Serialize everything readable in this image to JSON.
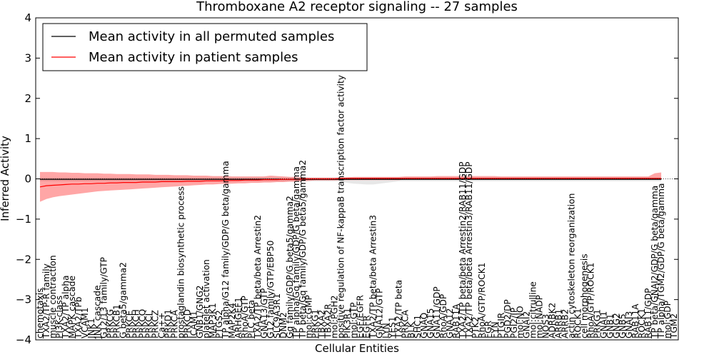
{
  "chart_data": {
    "type": "line",
    "title": "Thromboxane A2 receptor signaling -- 27 samples",
    "xlabel": "Cellular Entities",
    "ylabel": "Inferred Activity",
    "ylim": [
      -4,
      4
    ],
    "yticks": [
      -4,
      -3,
      -2,
      -1,
      0,
      1,
      2,
      3,
      4
    ],
    "grid": false,
    "legend_position": "top-left",
    "categories": [
      "chemotaxis",
      "TXA2/TP-R family",
      "muscle contraction",
      "PI3K-class",
      "TXA2/TP alpha",
      "MAPK cascade",
      "TXA2/TPb",
      "VCAM1",
      "JNK1",
      "JNK cascade",
      "G12/13 family/GTP",
      "PRKCG",
      "PRKCB1",
      "G beta5/gamma2",
      "PRKCE",
      "PRKCH",
      "PRKCQ",
      "PRKCI",
      "PRKCZ",
      "Ca++",
      "PRKD1",
      "PRKCA",
      "prostaglandin biosynthetic process",
      "PRKCD",
      "ICAM1",
      "GNB1/GNG2",
      "platelet activation",
      "MAP3K1",
      "PTGS2",
      "TP alpha/G12 family/GDP/G beta/gamma",
      "MAP2K4",
      "ARHGEF1",
      "RhoA/GTP",
      "PLC beta",
      "TXA2/TP beta/beta Arrestin2",
      "GNA13/GTP",
      "G12 family/GTP/EBP50",
      "SLC9A3R1",
      "DNM2",
      "Gq family/GDP/G beta5/gamma2",
      "TP alpha/Gq family/GDP/G beta/gamma",
      "TP beta/Gq family/GDP/G beta5/gamma2",
      "mol:cGMP",
      "PRKG1",
      "TBXA2",
      "TBXA2R",
      "mol:PGH2",
      "positive regulation of NF-kappaB transcription factor activity",
      "PIK3R1",
      "mol:GTP",
      "EGF/EGFR",
      "EGFR",
      "TXA2/TP beta/beta Arrestin3",
      "GNA12/GTP",
      "LYN",
      "YES1",
      "TXA2/TP beta",
      "PRKCA",
      "BLK",
      "SHC1",
      "GNAQ",
      "GNA15",
      "GNA11/GDP",
      "RhoA/GDP",
      "GNA12",
      "RAB11A",
      "TXA2/TP beta/beta Arrestin2/RAB11/GDP",
      "TXA2/TP beta/beta Arrestin3/RAB11/GDP",
      "PTK2",
      "RhoA/GTP/ROCK1",
      "FGR",
      "FYN",
      "PTGIR",
      "PGD2/DP",
      "PGI2/IP",
      "mol:NO",
      "GNAI2",
      "mol:citrulline",
      "mol:NADP",
      "NOS3",
      "ADRBK2",
      "ARRB1",
      "ARRB2",
      "actin cytoskeleton reorganization",
      "ROCK1",
      "cell morphogenesis",
      "RhoA/GTP/ROCK1",
      "PRKG1",
      "GNAI1",
      "GNB1",
      "GNG2",
      "GNB5",
      "GNAI3",
      "RAB11A",
      "ROCK1",
      "RAB11/GDP",
      "TP beta/GNAI2/GDP/G beta/gamma",
      "TP alpha/TGM2/GDP/G beta/gamma",
      "mol:GDP",
      "TGM2"
    ],
    "series": [
      {
        "name": "Mean activity in all permuted samples",
        "color": "#000000",
        "mean": [
          -0.01,
          -0.01,
          -0.01,
          -0.01,
          -0.01,
          -0.01,
          -0.01,
          -0.01,
          -0.01,
          -0.01,
          -0.01,
          -0.01,
          -0.01,
          -0.01,
          -0.01,
          -0.01,
          -0.01,
          -0.01,
          -0.01,
          -0.01,
          -0.01,
          -0.01,
          -0.01,
          -0.01,
          -0.01,
          -0.01,
          -0.01,
          -0.01,
          -0.01,
          -0.01,
          -0.01,
          -0.01,
          -0.01,
          -0.01,
          -0.01,
          -0.01,
          -0.01,
          -0.01,
          -0.01,
          -0.01,
          -0.01,
          -0.01,
          -0.01,
          -0.01,
          -0.01,
          -0.01,
          -0.01,
          -0.01,
          -0.01,
          -0.01,
          -0.01,
          -0.01,
          -0.01,
          -0.01,
          -0.01,
          -0.01,
          -0.01,
          -0.01,
          -0.01,
          -0.01,
          -0.01,
          -0.01,
          -0.01,
          -0.01,
          -0.01,
          -0.01,
          -0.01,
          -0.01,
          -0.01,
          -0.01,
          -0.01,
          -0.01,
          -0.01,
          -0.01,
          -0.01,
          -0.01,
          -0.01,
          -0.01,
          -0.01,
          -0.01,
          -0.01,
          -0.01,
          -0.01,
          -0.01,
          -0.01,
          -0.01,
          -0.01,
          -0.01,
          -0.01,
          -0.01,
          -0.01,
          -0.01,
          -0.01,
          -0.01,
          -0.01,
          -0.01,
          -0.01,
          -0.01
        ],
        "lower": [
          -0.06,
          -0.06,
          -0.06,
          -0.06,
          -0.06,
          -0.06,
          -0.06,
          -0.06,
          -0.06,
          -0.06,
          -0.06,
          -0.06,
          -0.06,
          -0.06,
          -0.06,
          -0.06,
          -0.06,
          -0.06,
          -0.06,
          -0.06,
          -0.06,
          -0.06,
          -0.06,
          -0.06,
          -0.06,
          -0.06,
          -0.06,
          -0.06,
          -0.06,
          -0.06,
          -0.06,
          -0.06,
          -0.06,
          -0.06,
          -0.06,
          -0.06,
          -0.06,
          -0.06,
          -0.06,
          -0.06,
          -0.06,
          -0.06,
          -0.06,
          -0.06,
          -0.06,
          -0.06,
          -0.06,
          -0.06,
          -0.1,
          -0.12,
          -0.13,
          -0.14,
          -0.14,
          -0.12,
          -0.1,
          -0.08,
          -0.06,
          -0.06,
          -0.06,
          -0.06,
          -0.06,
          -0.06,
          -0.06,
          -0.06,
          -0.06,
          -0.06,
          -0.06,
          -0.06,
          -0.06,
          -0.06,
          -0.06,
          -0.06,
          -0.06,
          -0.06,
          -0.06,
          -0.06,
          -0.06,
          -0.06,
          -0.06,
          -0.06,
          -0.06,
          -0.06,
          -0.06,
          -0.06,
          -0.06,
          -0.06,
          -0.06,
          -0.06,
          -0.06,
          -0.06,
          -0.06,
          -0.06,
          -0.06,
          -0.06,
          -0.06,
          -0.06,
          -0.06,
          -0.06
        ],
        "upper": [
          0.03,
          0.03,
          0.03,
          0.03,
          0.03,
          0.03,
          0.03,
          0.03,
          0.03,
          0.03,
          0.03,
          0.03,
          0.03,
          0.03,
          0.03,
          0.03,
          0.03,
          0.03,
          0.03,
          0.03,
          0.03,
          0.03,
          0.03,
          0.03,
          0.03,
          0.03,
          0.03,
          0.03,
          0.03,
          0.03,
          0.03,
          0.03,
          0.03,
          0.03,
          0.03,
          0.03,
          0.03,
          0.03,
          0.03,
          0.03,
          0.03,
          0.03,
          0.03,
          0.03,
          0.03,
          0.03,
          0.03,
          0.03,
          0.03,
          0.03,
          0.03,
          0.03,
          0.03,
          0.03,
          0.03,
          0.03,
          0.03,
          0.03,
          0.03,
          0.03,
          0.03,
          0.03,
          0.03,
          0.03,
          0.03,
          0.03,
          0.03,
          0.03,
          0.03,
          0.03,
          0.03,
          0.03,
          0.03,
          0.03,
          0.03,
          0.03,
          0.03,
          0.03,
          0.03,
          0.03,
          0.03,
          0.03,
          0.03,
          0.03,
          0.03,
          0.03,
          0.03,
          0.03,
          0.03,
          0.03,
          0.03,
          0.03,
          0.03,
          0.03,
          0.03,
          0.03,
          0.03,
          0.03
        ]
      },
      {
        "name": "Mean activity in patient samples",
        "color": "#ff0000",
        "mean": [
          -0.2,
          -0.17,
          -0.16,
          -0.15,
          -0.14,
          -0.13,
          -0.13,
          -0.12,
          -0.12,
          -0.11,
          -0.11,
          -0.1,
          -0.1,
          -0.09,
          -0.09,
          -0.09,
          -0.08,
          -0.08,
          -0.08,
          -0.07,
          -0.07,
          -0.07,
          -0.07,
          -0.06,
          -0.06,
          -0.06,
          -0.05,
          -0.05,
          -0.05,
          -0.04,
          -0.04,
          -0.04,
          -0.03,
          -0.03,
          -0.03,
          -0.02,
          -0.02,
          -0.02,
          -0.01,
          -0.01,
          -0.01,
          0,
          0,
          0,
          0,
          0,
          0,
          0.01,
          0.01,
          0.01,
          0.01,
          0.01,
          0.01,
          0.01,
          0.01,
          0.01,
          0.01,
          0.01,
          0.01,
          0.01,
          0.01,
          0.01,
          0.01,
          0.01,
          0.01,
          0.01,
          0.01,
          0.01,
          0.01,
          0.01,
          0.01,
          0.01,
          0.01,
          0.01,
          0.01,
          0.01,
          0.01,
          0.01,
          0.01,
          0.01,
          0.01,
          0.01,
          0.01,
          0.01,
          0.01,
          0.01,
          0.01,
          0.01,
          0.01,
          0.01,
          0.01,
          0.01,
          0.01,
          0.01,
          0.01,
          0.01,
          0.01,
          0.01
        ],
        "lower": [
          -0.57,
          -0.5,
          -0.46,
          -0.43,
          -0.41,
          -0.39,
          -0.37,
          -0.35,
          -0.33,
          -0.31,
          -0.3,
          -0.29,
          -0.28,
          -0.27,
          -0.26,
          -0.25,
          -0.24,
          -0.23,
          -0.22,
          -0.21,
          -0.2,
          -0.19,
          -0.18,
          -0.17,
          -0.16,
          -0.15,
          -0.14,
          -0.14,
          -0.13,
          -0.12,
          -0.12,
          -0.11,
          -0.11,
          -0.1,
          -0.1,
          -0.09,
          -0.09,
          -0.08,
          -0.08,
          -0.07,
          -0.07,
          -0.06,
          -0.05,
          -0.04,
          -0.04,
          -0.04,
          -0.04,
          -0.03,
          -0.03,
          -0.03,
          -0.03,
          -0.03,
          -0.03,
          -0.03,
          -0.03,
          -0.03,
          -0.03,
          -0.02,
          -0.02,
          -0.02,
          -0.02,
          -0.02,
          -0.02,
          -0.02,
          -0.02,
          -0.02,
          -0.02,
          -0.02,
          -0.02,
          -0.02,
          -0.02,
          -0.02,
          -0.02,
          -0.02,
          -0.02,
          -0.02,
          -0.02,
          -0.02,
          -0.02,
          -0.02,
          -0.02,
          -0.02,
          -0.02,
          -0.02,
          -0.02,
          -0.02,
          -0.02,
          -0.02,
          -0.02,
          -0.02,
          -0.02,
          -0.02,
          -0.02,
          -0.02,
          -0.02,
          -0.02,
          -0.02,
          -0.02
        ],
        "upper": [
          0.17,
          0.17,
          0.17,
          0.16,
          0.16,
          0.15,
          0.15,
          0.14,
          0.14,
          0.14,
          0.13,
          0.13,
          0.12,
          0.12,
          0.12,
          0.11,
          0.11,
          0.11,
          0.1,
          0.1,
          0.1,
          0.09,
          0.09,
          0.09,
          0.08,
          0.08,
          0.08,
          0.07,
          0.07,
          0.07,
          0.06,
          0.06,
          0.06,
          0.06,
          0.06,
          0.06,
          0.08,
          0.07,
          0.06,
          0.05,
          0.05,
          0.04,
          0.03,
          0.03,
          0.03,
          0.03,
          0.03,
          0.03,
          0.04,
          0.05,
          0.05,
          0.05,
          0.05,
          0.05,
          0.05,
          0.05,
          0.05,
          0.06,
          0.06,
          0.06,
          0.06,
          0.06,
          0.07,
          0.07,
          0.07,
          0.07,
          0.07,
          0.07,
          0.07,
          0.07,
          0.07,
          0.07,
          0.06,
          0.06,
          0.06,
          0.06,
          0.06,
          0.06,
          0.06,
          0.06,
          0.06,
          0.06,
          0.06,
          0.06,
          0.06,
          0.06,
          0.06,
          0.06,
          0.06,
          0.06,
          0.06,
          0.06,
          0.06,
          0.06,
          0.06,
          0.06,
          0.14,
          0.16
        ]
      }
    ]
  }
}
